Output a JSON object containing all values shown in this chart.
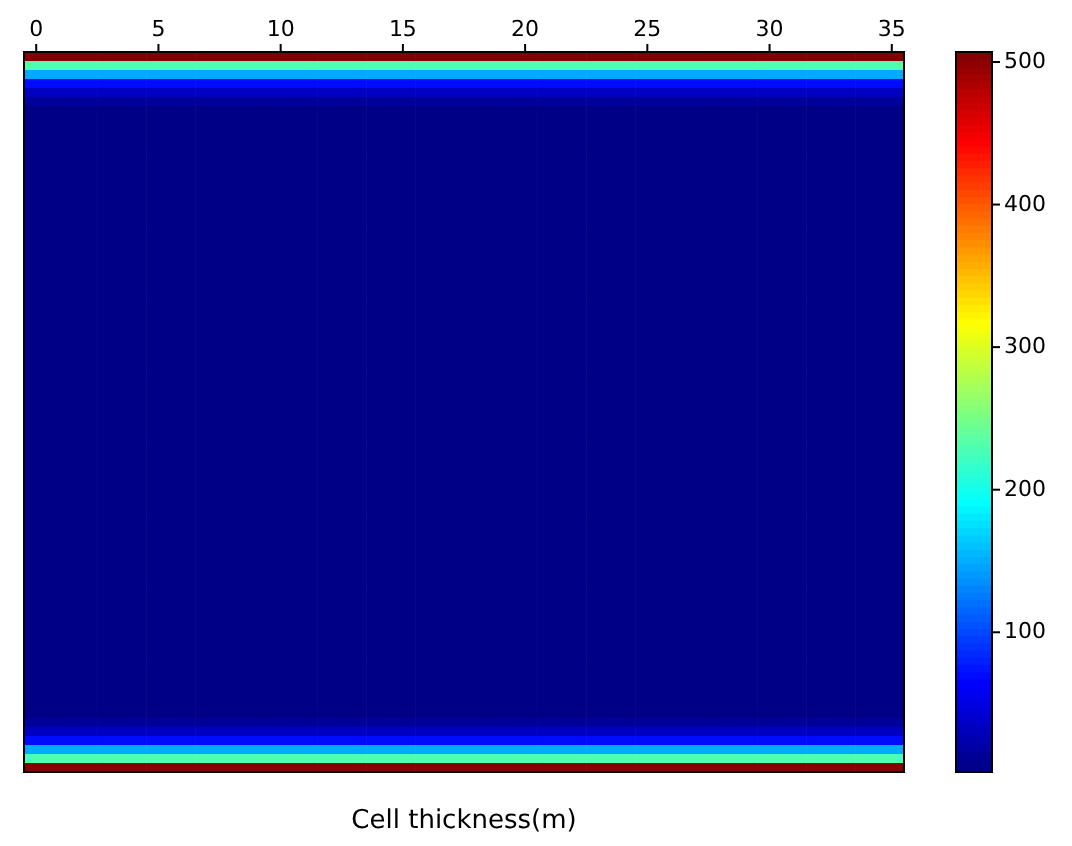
{
  "chart_data": {
    "type": "heatmap",
    "xlabel": "Cell thickness(m)",
    "clim": [
      2,
      507
    ],
    "cticks": [
      100,
      200,
      300,
      400,
      500
    ],
    "categories": [
      "0",
      null,
      null,
      null,
      null,
      "5",
      null,
      null,
      null,
      null,
      "10",
      null,
      null,
      null,
      null,
      "15",
      null,
      null,
      null,
      null,
      "20",
      null,
      null,
      null,
      null,
      "25",
      null,
      null,
      null,
      null,
      "30",
      null,
      null,
      null,
      null,
      "35"
    ],
    "y_categories": [
      null,
      null,
      null,
      null,
      null,
      null,
      null,
      null,
      null,
      null,
      null,
      null,
      null,
      null,
      null,
      null,
      null,
      null,
      null,
      null,
      null,
      null,
      null,
      null,
      null,
      null,
      null,
      null,
      null,
      null,
      null,
      null,
      null,
      null,
      null,
      null,
      null,
      null,
      null,
      null,
      null,
      null,
      null,
      null,
      null,
      null,
      null,
      null,
      null,
      null,
      null,
      null,
      null,
      null,
      null,
      null,
      null,
      null,
      null,
      null,
      null,
      null,
      null,
      null,
      null,
      null,
      null,
      null,
      null,
      null,
      null,
      null,
      null,
      null,
      null,
      null,
      null,
      null,
      null,
      null
    ],
    "cells": [
      [
        505,
        505,
        505,
        505,
        505,
        505,
        505,
        505,
        505,
        505,
        505,
        505,
        505,
        505,
        505,
        505,
        505,
        505,
        505,
        505,
        505,
        505,
        505,
        505,
        505,
        505,
        505,
        505,
        505,
        505,
        505,
        505,
        505,
        505,
        505,
        505
      ],
      [
        230,
        230,
        230,
        230,
        230,
        230,
        230,
        230,
        230,
        230,
        230,
        230,
        230,
        230,
        230,
        230,
        230,
        230,
        230,
        230,
        230,
        230,
        230,
        230,
        230,
        230,
        230,
        230,
        230,
        230,
        230,
        230,
        230,
        230,
        230,
        230
      ],
      [
        150,
        150,
        150,
        150,
        150,
        150,
        150,
        150,
        150,
        150,
        150,
        150,
        150,
        150,
        150,
        150,
        150,
        150,
        150,
        150,
        150,
        150,
        150,
        150,
        150,
        150,
        150,
        150,
        150,
        150,
        150,
        150,
        150,
        150,
        150,
        150
      ],
      [
        70,
        70,
        70,
        70,
        70,
        70,
        70,
        70,
        70,
        70,
        70,
        70,
        70,
        70,
        70,
        70,
        70,
        70,
        70,
        70,
        70,
        70,
        70,
        70,
        70,
        70,
        70,
        70,
        70,
        70,
        70,
        70,
        70,
        70,
        70,
        70
      ],
      [
        35,
        35,
        35,
        35,
        35,
        35,
        35,
        35,
        35,
        35,
        35,
        35,
        35,
        35,
        35,
        35,
        35,
        35,
        35,
        35,
        35,
        35,
        35,
        35,
        35,
        35,
        35,
        35,
        35,
        35,
        35,
        35,
        35,
        35,
        35,
        35
      ],
      [
        15,
        15,
        15,
        15,
        15,
        15,
        15,
        15,
        15,
        15,
        15,
        15,
        15,
        15,
        15,
        15,
        15,
        15,
        15,
        15,
        15,
        15,
        15,
        15,
        15,
        15,
        15,
        15,
        15,
        15,
        15,
        15,
        15,
        15,
        15,
        15
      ],
      [
        5,
        5,
        5,
        5,
        5,
        5,
        5,
        5,
        5,
        5,
        5,
        5,
        5,
        5,
        5,
        5,
        5,
        5,
        5,
        5,
        5,
        5,
        5,
        5,
        5,
        5,
        5,
        5,
        5,
        5,
        5,
        5,
        5,
        5,
        5,
        5
      ],
      [
        5,
        5,
        5,
        5,
        5,
        5,
        5,
        5,
        5,
        5,
        5,
        5,
        5,
        5,
        5,
        5,
        5,
        5,
        5,
        5,
        5,
        5,
        5,
        5,
        5,
        5,
        5,
        5,
        5,
        5,
        5,
        5,
        5,
        5,
        5,
        5
      ],
      [
        5,
        5,
        5,
        5,
        5,
        5,
        5,
        5,
        5,
        5,
        5,
        5,
        5,
        5,
        5,
        5,
        5,
        5,
        5,
        5,
        5,
        5,
        5,
        5,
        5,
        5,
        5,
        5,
        5,
        5,
        5,
        5,
        5,
        5,
        5,
        5
      ],
      [
        5,
        5,
        5,
        5,
        5,
        5,
        5,
        5,
        5,
        5,
        5,
        5,
        5,
        5,
        5,
        5,
        5,
        5,
        5,
        5,
        5,
        5,
        5,
        5,
        5,
        5,
        5,
        5,
        5,
        5,
        5,
        5,
        5,
        5,
        5,
        5
      ],
      [
        5,
        5,
        5,
        5,
        5,
        5,
        5,
        5,
        5,
        5,
        5,
        5,
        5,
        5,
        5,
        5,
        5,
        5,
        5,
        5,
        5,
        5,
        5,
        5,
        5,
        5,
        5,
        5,
        5,
        5,
        5,
        5,
        5,
        5,
        5,
        5
      ],
      [
        5,
        5,
        5,
        5,
        5,
        5,
        5,
        5,
        5,
        5,
        5,
        5,
        5,
        5,
        5,
        5,
        5,
        5,
        5,
        5,
        5,
        5,
        5,
        5,
        5,
        5,
        5,
        5,
        5,
        5,
        5,
        5,
        5,
        5,
        5,
        5
      ],
      [
        5,
        5,
        5,
        5,
        5,
        5,
        5,
        5,
        5,
        5,
        5,
        5,
        5,
        5,
        5,
        5,
        5,
        5,
        5,
        5,
        5,
        5,
        5,
        5,
        5,
        5,
        5,
        5,
        5,
        5,
        5,
        5,
        5,
        5,
        5,
        5
      ],
      [
        5,
        5,
        5,
        5,
        5,
        5,
        5,
        5,
        5,
        5,
        5,
        5,
        5,
        5,
        5,
        5,
        5,
        5,
        5,
        5,
        5,
        5,
        5,
        5,
        5,
        5,
        5,
        5,
        5,
        5,
        5,
        5,
        5,
        5,
        5,
        5
      ],
      [
        5,
        5,
        5,
        5,
        5,
        5,
        5,
        5,
        5,
        5,
        5,
        5,
        5,
        5,
        5,
        5,
        5,
        5,
        5,
        5,
        5,
        5,
        5,
        5,
        5,
        5,
        5,
        5,
        5,
        5,
        5,
        5,
        5,
        5,
        5,
        5
      ],
      [
        5,
        5,
        5,
        5,
        5,
        5,
        5,
        5,
        5,
        5,
        5,
        5,
        5,
        5,
        5,
        5,
        5,
        5,
        5,
        5,
        5,
        5,
        5,
        5,
        5,
        5,
        5,
        5,
        5,
        5,
        5,
        5,
        5,
        5,
        5,
        5
      ],
      [
        5,
        5,
        5,
        5,
        5,
        5,
        5,
        5,
        5,
        5,
        5,
        5,
        5,
        5,
        5,
        5,
        5,
        5,
        5,
        5,
        5,
        5,
        5,
        5,
        5,
        5,
        5,
        5,
        5,
        5,
        5,
        5,
        5,
        5,
        5,
        5
      ],
      [
        5,
        5,
        5,
        5,
        5,
        5,
        5,
        5,
        5,
        5,
        5,
        5,
        5,
        5,
        5,
        5,
        5,
        5,
        5,
        5,
        5,
        5,
        5,
        5,
        5,
        5,
        5,
        5,
        5,
        5,
        5,
        5,
        5,
        5,
        5,
        5
      ],
      [
        5,
        5,
        5,
        5,
        5,
        5,
        5,
        5,
        5,
        5,
        5,
        5,
        5,
        5,
        5,
        5,
        5,
        5,
        5,
        5,
        5,
        5,
        5,
        5,
        5,
        5,
        5,
        5,
        5,
        5,
        5,
        5,
        5,
        5,
        5,
        5
      ],
      [
        5,
        5,
        5,
        5,
        5,
        5,
        5,
        5,
        5,
        5,
        5,
        5,
        5,
        5,
        5,
        5,
        5,
        5,
        5,
        5,
        5,
        5,
        5,
        5,
        5,
        5,
        5,
        5,
        5,
        5,
        5,
        5,
        5,
        5,
        5,
        5
      ],
      [
        5,
        5,
        5,
        5,
        5,
        5,
        5,
        5,
        5,
        5,
        5,
        5,
        5,
        5,
        5,
        5,
        5,
        5,
        5,
        5,
        5,
        5,
        5,
        5,
        5,
        5,
        5,
        5,
        5,
        5,
        5,
        5,
        5,
        5,
        5,
        5
      ],
      [
        5,
        5,
        5,
        5,
        5,
        5,
        5,
        5,
        5,
        5,
        5,
        5,
        5,
        5,
        5,
        5,
        5,
        5,
        5,
        5,
        5,
        5,
        5,
        5,
        5,
        5,
        5,
        5,
        5,
        5,
        5,
        5,
        5,
        5,
        5,
        5
      ],
      [
        5,
        5,
        5,
        5,
        5,
        5,
        5,
        5,
        5,
        5,
        5,
        5,
        5,
        5,
        5,
        5,
        5,
        5,
        5,
        5,
        5,
        5,
        5,
        5,
        5,
        5,
        5,
        5,
        5,
        5,
        5,
        5,
        5,
        5,
        5,
        5
      ],
      [
        5,
        5,
        5,
        5,
        5,
        5,
        5,
        5,
        5,
        5,
        5,
        5,
        5,
        5,
        5,
        5,
        5,
        5,
        5,
        5,
        5,
        5,
        5,
        5,
        5,
        5,
        5,
        5,
        5,
        5,
        5,
        5,
        5,
        5,
        5,
        5
      ],
      [
        5,
        5,
        5,
        5,
        5,
        5,
        5,
        5,
        5,
        5,
        5,
        5,
        5,
        5,
        5,
        5,
        5,
        5,
        5,
        5,
        5,
        5,
        5,
        5,
        5,
        5,
        5,
        5,
        5,
        5,
        5,
        5,
        5,
        5,
        5,
        5
      ],
      [
        5,
        5,
        5,
        5,
        5,
        5,
        5,
        5,
        5,
        5,
        5,
        5,
        5,
        5,
        5,
        5,
        5,
        5,
        5,
        5,
        5,
        5,
        5,
        5,
        5,
        5,
        5,
        5,
        5,
        5,
        5,
        5,
        5,
        5,
        5,
        5
      ],
      [
        5,
        5,
        5,
        5,
        5,
        5,
        5,
        5,
        5,
        5,
        5,
        5,
        5,
        5,
        5,
        5,
        5,
        5,
        5,
        5,
        5,
        5,
        5,
        5,
        5,
        5,
        5,
        5,
        5,
        5,
        5,
        5,
        5,
        5,
        5,
        5
      ],
      [
        5,
        5,
        5,
        5,
        5,
        5,
        5,
        5,
        5,
        5,
        5,
        5,
        5,
        5,
        5,
        5,
        5,
        5,
        5,
        5,
        5,
        5,
        5,
        5,
        5,
        5,
        5,
        5,
        5,
        5,
        5,
        5,
        5,
        5,
        5,
        5
      ],
      [
        5,
        5,
        5,
        5,
        5,
        5,
        5,
        5,
        5,
        5,
        5,
        5,
        5,
        5,
        5,
        5,
        5,
        5,
        5,
        5,
        5,
        5,
        5,
        5,
        5,
        5,
        5,
        5,
        5,
        5,
        5,
        5,
        5,
        5,
        5,
        5
      ],
      [
        5,
        5,
        5,
        5,
        5,
        5,
        5,
        5,
        5,
        5,
        5,
        5,
        5,
        5,
        5,
        5,
        5,
        5,
        5,
        5,
        5,
        5,
        5,
        5,
        5,
        5,
        5,
        5,
        5,
        5,
        5,
        5,
        5,
        5,
        5,
        5
      ],
      [
        5,
        5,
        5,
        5,
        5,
        5,
        5,
        5,
        5,
        5,
        5,
        5,
        5,
        5,
        5,
        5,
        5,
        5,
        5,
        5,
        5,
        5,
        5,
        5,
        5,
        5,
        5,
        5,
        5,
        5,
        5,
        5,
        5,
        5,
        5,
        5
      ],
      [
        5,
        5,
        5,
        5,
        5,
        5,
        5,
        5,
        5,
        5,
        5,
        5,
        5,
        5,
        5,
        5,
        5,
        5,
        5,
        5,
        5,
        5,
        5,
        5,
        5,
        5,
        5,
        5,
        5,
        5,
        5,
        5,
        5,
        5,
        5,
        5
      ],
      [
        5,
        5,
        5,
        5,
        5,
        5,
        5,
        5,
        5,
        5,
        5,
        5,
        5,
        5,
        5,
        5,
        5,
        5,
        5,
        5,
        5,
        5,
        5,
        5,
        5,
        5,
        5,
        5,
        5,
        5,
        5,
        5,
        5,
        5,
        5,
        5
      ],
      [
        5,
        5,
        5,
        5,
        5,
        5,
        5,
        5,
        5,
        5,
        5,
        5,
        5,
        5,
        5,
        5,
        5,
        5,
        5,
        5,
        5,
        5,
        5,
        5,
        5,
        5,
        5,
        5,
        5,
        5,
        5,
        5,
        5,
        5,
        5,
        5
      ],
      [
        5,
        5,
        5,
        5,
        5,
        5,
        5,
        5,
        5,
        5,
        5,
        5,
        5,
        5,
        5,
        5,
        5,
        5,
        5,
        5,
        5,
        5,
        5,
        5,
        5,
        5,
        5,
        5,
        5,
        5,
        5,
        5,
        5,
        5,
        5,
        5
      ],
      [
        5,
        5,
        5,
        5,
        5,
        5,
        5,
        5,
        5,
        5,
        5,
        5,
        5,
        5,
        5,
        5,
        5,
        5,
        5,
        5,
        5,
        5,
        5,
        5,
        5,
        5,
        5,
        5,
        5,
        5,
        5,
        5,
        5,
        5,
        5,
        5
      ],
      [
        5,
        5,
        5,
        5,
        5,
        5,
        5,
        5,
        5,
        5,
        5,
        5,
        5,
        5,
        5,
        5,
        5,
        5,
        5,
        5,
        5,
        5,
        5,
        5,
        5,
        5,
        5,
        5,
        5,
        5,
        5,
        5,
        5,
        5,
        5,
        5
      ],
      [
        5,
        5,
        5,
        5,
        5,
        5,
        5,
        5,
        5,
        5,
        5,
        5,
        5,
        5,
        5,
        5,
        5,
        5,
        5,
        5,
        5,
        5,
        5,
        5,
        5,
        5,
        5,
        5,
        5,
        5,
        5,
        5,
        5,
        5,
        5,
        5
      ],
      [
        5,
        5,
        5,
        5,
        5,
        5,
        5,
        5,
        5,
        5,
        5,
        5,
        5,
        5,
        5,
        5,
        5,
        5,
        5,
        5,
        5,
        5,
        5,
        5,
        5,
        5,
        5,
        5,
        5,
        5,
        5,
        5,
        5,
        5,
        5,
        5
      ],
      [
        5,
        5,
        5,
        5,
        5,
        5,
        5,
        5,
        5,
        5,
        5,
        5,
        5,
        5,
        5,
        5,
        5,
        5,
        5,
        5,
        5,
        5,
        5,
        5,
        5,
        5,
        5,
        5,
        5,
        5,
        5,
        5,
        5,
        5,
        5,
        5
      ],
      [
        5,
        5,
        5,
        5,
        5,
        5,
        5,
        5,
        5,
        5,
        5,
        5,
        5,
        5,
        5,
        5,
        5,
        5,
        5,
        5,
        5,
        5,
        5,
        5,
        5,
        5,
        5,
        5,
        5,
        5,
        5,
        5,
        5,
        5,
        5,
        5
      ],
      [
        5,
        5,
        5,
        5,
        5,
        5,
        5,
        5,
        5,
        5,
        5,
        5,
        5,
        5,
        5,
        5,
        5,
        5,
        5,
        5,
        5,
        5,
        5,
        5,
        5,
        5,
        5,
        5,
        5,
        5,
        5,
        5,
        5,
        5,
        5,
        5
      ],
      [
        5,
        5,
        5,
        5,
        5,
        5,
        5,
        5,
        5,
        5,
        5,
        5,
        5,
        5,
        5,
        5,
        5,
        5,
        5,
        5,
        5,
        5,
        5,
        5,
        5,
        5,
        5,
        5,
        5,
        5,
        5,
        5,
        5,
        5,
        5,
        5
      ],
      [
        5,
        5,
        5,
        5,
        5,
        5,
        5,
        5,
        5,
        5,
        5,
        5,
        5,
        5,
        5,
        5,
        5,
        5,
        5,
        5,
        5,
        5,
        5,
        5,
        5,
        5,
        5,
        5,
        5,
        5,
        5,
        5,
        5,
        5,
        5,
        5
      ],
      [
        5,
        5,
        5,
        5,
        5,
        5,
        5,
        5,
        5,
        5,
        5,
        5,
        5,
        5,
        5,
        5,
        5,
        5,
        5,
        5,
        5,
        5,
        5,
        5,
        5,
        5,
        5,
        5,
        5,
        5,
        5,
        5,
        5,
        5,
        5,
        5
      ],
      [
        5,
        5,
        5,
        5,
        5,
        5,
        5,
        5,
        5,
        5,
        5,
        5,
        5,
        5,
        5,
        5,
        5,
        5,
        5,
        5,
        5,
        5,
        5,
        5,
        5,
        5,
        5,
        5,
        5,
        5,
        5,
        5,
        5,
        5,
        5,
        5
      ],
      [
        5,
        5,
        5,
        5,
        5,
        5,
        5,
        5,
        5,
        5,
        5,
        5,
        5,
        5,
        5,
        5,
        5,
        5,
        5,
        5,
        5,
        5,
        5,
        5,
        5,
        5,
        5,
        5,
        5,
        5,
        5,
        5,
        5,
        5,
        5,
        5
      ],
      [
        5,
        5,
        5,
        5,
        5,
        5,
        5,
        5,
        5,
        5,
        5,
        5,
        5,
        5,
        5,
        5,
        5,
        5,
        5,
        5,
        5,
        5,
        5,
        5,
        5,
        5,
        5,
        5,
        5,
        5,
        5,
        5,
        5,
        5,
        5,
        5
      ],
      [
        5,
        5,
        5,
        5,
        5,
        5,
        5,
        5,
        5,
        5,
        5,
        5,
        5,
        5,
        5,
        5,
        5,
        5,
        5,
        5,
        5,
        5,
        5,
        5,
        5,
        5,
        5,
        5,
        5,
        5,
        5,
        5,
        5,
        5,
        5,
        5
      ],
      [
        5,
        5,
        5,
        5,
        5,
        5,
        5,
        5,
        5,
        5,
        5,
        5,
        5,
        5,
        5,
        5,
        5,
        5,
        5,
        5,
        5,
        5,
        5,
        5,
        5,
        5,
        5,
        5,
        5,
        5,
        5,
        5,
        5,
        5,
        5,
        5
      ],
      [
        5,
        5,
        5,
        5,
        5,
        5,
        5,
        5,
        5,
        5,
        5,
        5,
        5,
        5,
        5,
        5,
        5,
        5,
        5,
        5,
        5,
        5,
        5,
        5,
        5,
        5,
        5,
        5,
        5,
        5,
        5,
        5,
        5,
        5,
        5,
        5
      ],
      [
        5,
        5,
        5,
        5,
        5,
        5,
        5,
        5,
        5,
        5,
        5,
        5,
        5,
        5,
        5,
        5,
        5,
        5,
        5,
        5,
        5,
        5,
        5,
        5,
        5,
        5,
        5,
        5,
        5,
        5,
        5,
        5,
        5,
        5,
        5,
        5
      ],
      [
        5,
        5,
        5,
        5,
        5,
        5,
        5,
        5,
        5,
        5,
        5,
        5,
        5,
        5,
        5,
        5,
        5,
        5,
        5,
        5,
        5,
        5,
        5,
        5,
        5,
        5,
        5,
        5,
        5,
        5,
        5,
        5,
        5,
        5,
        5,
        5
      ],
      [
        5,
        5,
        5,
        5,
        5,
        5,
        5,
        5,
        5,
        5,
        5,
        5,
        5,
        5,
        5,
        5,
        5,
        5,
        5,
        5,
        5,
        5,
        5,
        5,
        5,
        5,
        5,
        5,
        5,
        5,
        5,
        5,
        5,
        5,
        5,
        5
      ],
      [
        5,
        5,
        5,
        5,
        5,
        5,
        5,
        5,
        5,
        5,
        5,
        5,
        5,
        5,
        5,
        5,
        5,
        5,
        5,
        5,
        5,
        5,
        5,
        5,
        5,
        5,
        5,
        5,
        5,
        5,
        5,
        5,
        5,
        5,
        5,
        5
      ],
      [
        5,
        5,
        5,
        5,
        5,
        5,
        5,
        5,
        5,
        5,
        5,
        5,
        5,
        5,
        5,
        5,
        5,
        5,
        5,
        5,
        5,
        5,
        5,
        5,
        5,
        5,
        5,
        5,
        5,
        5,
        5,
        5,
        5,
        5,
        5,
        5
      ],
      [
        5,
        5,
        5,
        5,
        5,
        5,
        5,
        5,
        5,
        5,
        5,
        5,
        5,
        5,
        5,
        5,
        5,
        5,
        5,
        5,
        5,
        5,
        5,
        5,
        5,
        5,
        5,
        5,
        5,
        5,
        5,
        5,
        5,
        5,
        5,
        5
      ],
      [
        5,
        5,
        5,
        5,
        5,
        5,
        5,
        5,
        5,
        5,
        5,
        5,
        5,
        5,
        5,
        5,
        5,
        5,
        5,
        5,
        5,
        5,
        5,
        5,
        5,
        5,
        5,
        5,
        5,
        5,
        5,
        5,
        5,
        5,
        5,
        5
      ],
      [
        5,
        5,
        5,
        5,
        5,
        5,
        5,
        5,
        5,
        5,
        5,
        5,
        5,
        5,
        5,
        5,
        5,
        5,
        5,
        5,
        5,
        5,
        5,
        5,
        5,
        5,
        5,
        5,
        5,
        5,
        5,
        5,
        5,
        5,
        5,
        5
      ],
      [
        5,
        5,
        5,
        5,
        5,
        5,
        5,
        5,
        5,
        5,
        5,
        5,
        5,
        5,
        5,
        5,
        5,
        5,
        5,
        5,
        5,
        5,
        5,
        5,
        5,
        5,
        5,
        5,
        5,
        5,
        5,
        5,
        5,
        5,
        5,
        5
      ],
      [
        5,
        5,
        5,
        5,
        5,
        5,
        5,
        5,
        5,
        5,
        5,
        5,
        5,
        5,
        5,
        5,
        5,
        5,
        5,
        5,
        5,
        5,
        5,
        5,
        5,
        5,
        5,
        5,
        5,
        5,
        5,
        5,
        5,
        5,
        5,
        5
      ],
      [
        5,
        5,
        5,
        5,
        5,
        5,
        5,
        5,
        5,
        5,
        5,
        5,
        5,
        5,
        5,
        5,
        5,
        5,
        5,
        5,
        5,
        5,
        5,
        5,
        5,
        5,
        5,
        5,
        5,
        5,
        5,
        5,
        5,
        5,
        5,
        5
      ],
      [
        5,
        5,
        5,
        5,
        5,
        5,
        5,
        5,
        5,
        5,
        5,
        5,
        5,
        5,
        5,
        5,
        5,
        5,
        5,
        5,
        5,
        5,
        5,
        5,
        5,
        5,
        5,
        5,
        5,
        5,
        5,
        5,
        5,
        5,
        5,
        5
      ],
      [
        5,
        5,
        5,
        5,
        5,
        5,
        5,
        5,
        5,
        5,
        5,
        5,
        5,
        5,
        5,
        5,
        5,
        5,
        5,
        5,
        5,
        5,
        5,
        5,
        5,
        5,
        5,
        5,
        5,
        5,
        5,
        5,
        5,
        5,
        5,
        5
      ],
      [
        5,
        5,
        5,
        5,
        5,
        5,
        5,
        5,
        5,
        5,
        5,
        5,
        5,
        5,
        5,
        5,
        5,
        5,
        5,
        5,
        5,
        5,
        5,
        5,
        5,
        5,
        5,
        5,
        5,
        5,
        5,
        5,
        5,
        5,
        5,
        5
      ],
      [
        5,
        5,
        5,
        5,
        5,
        5,
        5,
        5,
        5,
        5,
        5,
        5,
        5,
        5,
        5,
        5,
        5,
        5,
        5,
        5,
        5,
        5,
        5,
        5,
        5,
        5,
        5,
        5,
        5,
        5,
        5,
        5,
        5,
        5,
        5,
        5
      ],
      [
        5,
        5,
        5,
        5,
        5,
        5,
        5,
        5,
        5,
        5,
        5,
        5,
        5,
        5,
        5,
        5,
        5,
        5,
        5,
        5,
        5,
        5,
        5,
        5,
        5,
        5,
        5,
        5,
        5,
        5,
        5,
        5,
        5,
        5,
        5,
        5
      ],
      [
        5,
        5,
        5,
        5,
        5,
        5,
        5,
        5,
        5,
        5,
        5,
        5,
        5,
        5,
        5,
        5,
        5,
        5,
        5,
        5,
        5,
        5,
        5,
        5,
        5,
        5,
        5,
        5,
        5,
        5,
        5,
        5,
        5,
        5,
        5,
        5
      ],
      [
        5,
        5,
        5,
        5,
        5,
        5,
        5,
        5,
        5,
        5,
        5,
        5,
        5,
        5,
        5,
        5,
        5,
        5,
        5,
        5,
        5,
        5,
        5,
        5,
        5,
        5,
        5,
        5,
        5,
        5,
        5,
        5,
        5,
        5,
        5,
        5
      ],
      [
        5,
        5,
        5,
        5,
        5,
        5,
        5,
        5,
        5,
        5,
        5,
        5,
        5,
        5,
        5,
        5,
        5,
        5,
        5,
        5,
        5,
        5,
        5,
        5,
        5,
        5,
        5,
        5,
        5,
        5,
        5,
        5,
        5,
        5,
        5,
        5
      ],
      [
        5,
        5,
        5,
        5,
        5,
        5,
        5,
        5,
        5,
        5,
        5,
        5,
        5,
        5,
        5,
        5,
        5,
        5,
        5,
        5,
        5,
        5,
        5,
        5,
        5,
        5,
        5,
        5,
        5,
        5,
        5,
        5,
        5,
        5,
        5,
        5
      ],
      [
        5,
        5,
        5,
        5,
        5,
        5,
        5,
        5,
        5,
        5,
        5,
        5,
        5,
        5,
        5,
        5,
        5,
        5,
        5,
        5,
        5,
        5,
        5,
        5,
        5,
        5,
        5,
        5,
        5,
        5,
        5,
        5,
        5,
        5,
        5,
        5
      ],
      [
        5,
        5,
        5,
        5,
        5,
        5,
        5,
        5,
        5,
        5,
        5,
        5,
        5,
        5,
        5,
        5,
        5,
        5,
        5,
        5,
        5,
        5,
        5,
        5,
        5,
        5,
        5,
        5,
        5,
        5,
        5,
        5,
        5,
        5,
        5,
        5
      ],
      [
        5,
        5,
        5,
        5,
        5,
        5,
        5,
        5,
        5,
        5,
        5,
        5,
        5,
        5,
        5,
        5,
        5,
        5,
        5,
        5,
        5,
        5,
        5,
        5,
        5,
        5,
        5,
        5,
        5,
        5,
        5,
        5,
        5,
        5,
        5,
        5
      ],
      [
        15,
        15,
        15,
        15,
        15,
        15,
        15,
        15,
        15,
        15,
        15,
        15,
        15,
        15,
        15,
        15,
        15,
        15,
        15,
        15,
        15,
        15,
        15,
        15,
        15,
        15,
        15,
        15,
        15,
        15,
        15,
        15,
        15,
        15,
        15,
        15
      ],
      [
        35,
        35,
        35,
        35,
        35,
        35,
        35,
        35,
        35,
        35,
        35,
        35,
        35,
        35,
        35,
        35,
        35,
        35,
        35,
        35,
        35,
        35,
        35,
        35,
        35,
        35,
        35,
        35,
        35,
        35,
        35,
        35,
        35,
        35,
        35,
        35
      ],
      [
        70,
        70,
        70,
        70,
        70,
        70,
        70,
        70,
        70,
        70,
        70,
        70,
        70,
        70,
        70,
        70,
        70,
        70,
        70,
        70,
        70,
        70,
        70,
        70,
        70,
        70,
        70,
        70,
        70,
        70,
        70,
        70,
        70,
        70,
        70,
        70
      ],
      [
        150,
        150,
        150,
        150,
        150,
        150,
        150,
        150,
        150,
        150,
        150,
        150,
        150,
        150,
        150,
        150,
        150,
        150,
        150,
        150,
        150,
        150,
        150,
        150,
        150,
        150,
        150,
        150,
        150,
        150,
        150,
        150,
        150,
        150,
        150,
        150
      ],
      [
        230,
        230,
        230,
        230,
        230,
        230,
        230,
        230,
        230,
        230,
        230,
        230,
        230,
        230,
        230,
        230,
        230,
        230,
        230,
        230,
        230,
        230,
        230,
        230,
        230,
        230,
        230,
        230,
        230,
        230,
        230,
        230,
        230,
        230,
        230,
        230
      ],
      [
        505,
        505,
        505,
        505,
        505,
        505,
        505,
        505,
        505,
        505,
        505,
        505,
        505,
        505,
        505,
        505,
        505,
        505,
        505,
        505,
        505,
        505,
        505,
        505,
        505,
        505,
        505,
        505,
        505,
        505,
        505,
        505,
        505,
        505,
        505,
        505
      ]
    ]
  }
}
